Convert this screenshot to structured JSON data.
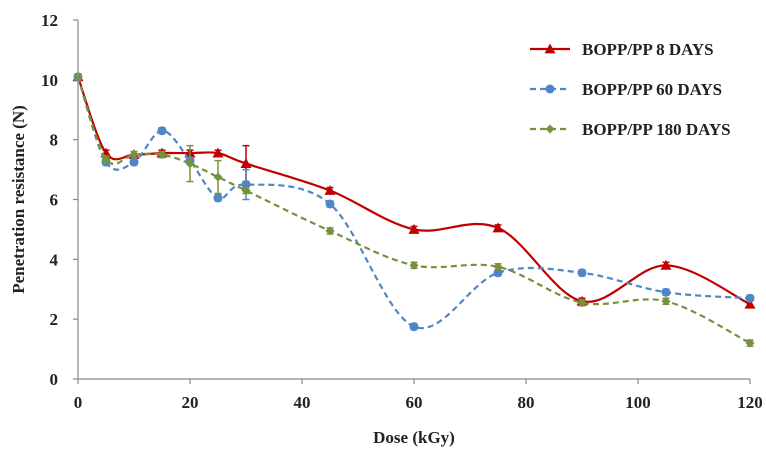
{
  "chart_data": {
    "type": "line",
    "xlabel": "Dose (kGy)",
    "ylabel": "Penetration resistance (N)",
    "xlim": [
      0,
      120
    ],
    "ylim": [
      0,
      12
    ],
    "xticks": [
      0,
      20,
      40,
      60,
      80,
      100,
      120
    ],
    "yticks": [
      0,
      2,
      4,
      6,
      8,
      10,
      12
    ],
    "grid": false,
    "legend_position": "top-right",
    "series": [
      {
        "name": "BOPP/PP 8 DAYS",
        "color": "#c00000",
        "dash": "solid",
        "marker": "triangle",
        "x": [
          0,
          5,
          10,
          15,
          20,
          25,
          30,
          45,
          60,
          75,
          90,
          105,
          120
        ],
        "y": [
          10.1,
          7.55,
          7.5,
          7.55,
          7.55,
          7.55,
          7.2,
          6.3,
          5.0,
          5.05,
          2.6,
          3.8,
          2.5
        ],
        "err": [
          0.1,
          0.1,
          0.1,
          0.1,
          0.1,
          0.1,
          0.6,
          0.1,
          0.1,
          0.1,
          0.1,
          0.1,
          0.1
        ]
      },
      {
        "name": "BOPP/PP 60 DAYS",
        "color": "#4f86c6",
        "dash": "dash",
        "marker": "circle",
        "x": [
          0,
          5,
          10,
          15,
          20,
          25,
          30,
          45,
          60,
          75,
          90,
          105,
          120
        ],
        "y": [
          10.1,
          7.25,
          7.25,
          8.3,
          7.3,
          6.05,
          6.5,
          5.85,
          1.75,
          3.55,
          3.55,
          2.9,
          2.7
        ],
        "err": [
          0.1,
          0.1,
          0.1,
          0.1,
          0.1,
          0.1,
          0.5,
          0.1,
          0.1,
          0.1,
          0.1,
          0.1,
          0.1
        ]
      },
      {
        "name": "BOPP/PP 180 DAYS",
        "color": "#76923c",
        "dash": "dash",
        "marker": "diamond",
        "x": [
          0,
          5,
          10,
          15,
          20,
          25,
          30,
          45,
          60,
          75,
          90,
          105,
          120
        ],
        "y": [
          10.1,
          7.35,
          7.5,
          7.5,
          7.2,
          6.75,
          6.3,
          4.95,
          3.8,
          3.75,
          2.55,
          2.6,
          1.2
        ],
        "err": [
          0.1,
          0.1,
          0.1,
          0.1,
          0.6,
          0.55,
          0.1,
          0.1,
          0.1,
          0.1,
          0.1,
          0.1,
          0.1
        ]
      }
    ]
  }
}
